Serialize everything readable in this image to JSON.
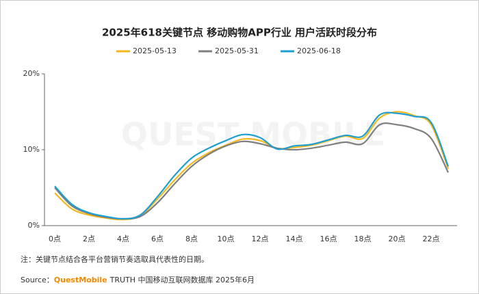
{
  "chart_data": {
    "type": "line",
    "title": "2025年618关键节点 移动购物APP行业 用户活跃时段分布",
    "categories": [
      "0点",
      null,
      "2点",
      null,
      "4点",
      null,
      "6点",
      null,
      "8点",
      null,
      "10点",
      null,
      "12点",
      null,
      "14点",
      null,
      "16点",
      null,
      "18点",
      null,
      "20点",
      null,
      "22点",
      null
    ],
    "series": [
      {
        "name": "2025-05-13",
        "color": "#f5b81c",
        "values": [
          4.3,
          2.2,
          1.4,
          1.0,
          0.8,
          1.3,
          3.5,
          6.0,
          8.2,
          9.6,
          10.6,
          11.4,
          11.2,
          10.2,
          10.3,
          10.6,
          11.2,
          11.8,
          11.5,
          14.2,
          15.0,
          14.5,
          13.3,
          7.5
        ]
      },
      {
        "name": "2025-05-31",
        "color": "#7f7f7f",
        "values": [
          5.0,
          2.6,
          1.6,
          1.1,
          0.9,
          1.2,
          3.0,
          5.5,
          7.8,
          9.4,
          10.5,
          11.1,
          10.8,
          10.2,
          10.0,
          10.2,
          10.6,
          11.0,
          10.8,
          13.3,
          13.3,
          12.8,
          11.5,
          7.0
        ]
      },
      {
        "name": "2025-06-18",
        "color": "#1f9fd1",
        "values": [
          5.2,
          2.8,
          1.7,
          1.2,
          0.9,
          1.4,
          3.8,
          6.6,
          8.9,
          10.2,
          11.2,
          12.0,
          11.6,
          10.1,
          10.5,
          10.7,
          11.3,
          11.9,
          11.8,
          14.6,
          14.8,
          14.4,
          13.6,
          7.8
        ]
      }
    ],
    "ylim": [
      0,
      20
    ],
    "yticks": [
      {
        "value": 0,
        "label": "0%"
      },
      {
        "value": 10,
        "label": "10%"
      },
      {
        "value": 20,
        "label": "20%"
      }
    ],
    "watermark": "QUEST MOBILE",
    "note": "注：关键节点结合各平台营销节奏选取具代表性的日期。",
    "source": {
      "prefix": "Source：",
      "brand": "QuestMobile",
      "text": "TRUTH 中国移动互联网数据库 2025年6月"
    }
  }
}
